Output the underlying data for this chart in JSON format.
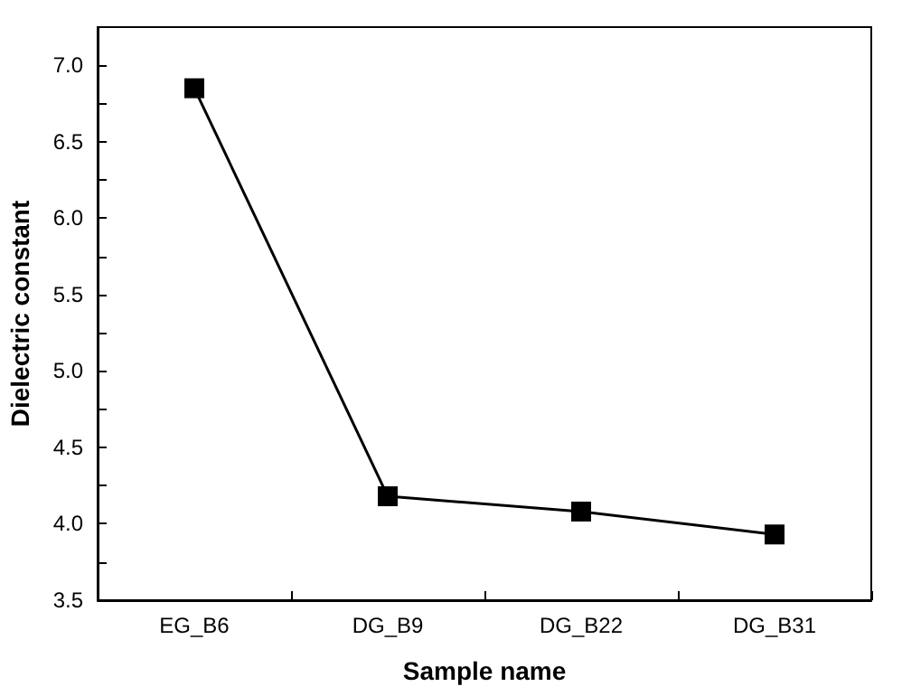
{
  "chart_data": {
    "type": "line",
    "xlabel": "Sample name",
    "ylabel": "Dielectric constant",
    "categories": [
      "EG_B6",
      "DG_B9",
      "DG_B22",
      "DG_B31"
    ],
    "series": [
      {
        "color": "#000000",
        "values": [
          6.85,
          4.18,
          4.08,
          3.93
        ]
      }
    ],
    "ylim": [
      3.5,
      7.25
    ],
    "yticks": [
      3.5,
      {
        "value": 3.75,
        "label": null
      },
      {
        "value": 4,
        "label": "4.0"
      },
      {
        "value": 4.25,
        "label": null
      },
      4.5,
      {
        "value": 4.75,
        "label": null
      },
      {
        "value": 5,
        "label": "5.0"
      },
      {
        "value": 5.25,
        "label": null
      },
      5.5,
      {
        "value": 5.75,
        "label": null
      },
      {
        "value": 6,
        "label": "6.0"
      },
      {
        "value": 6.25,
        "label": null
      },
      6.5,
      {
        "value": 6.75,
        "label": null
      },
      {
        "value": 7,
        "label": "7.0"
      }
    ],
    "marker": "square",
    "line_style": "solid"
  }
}
